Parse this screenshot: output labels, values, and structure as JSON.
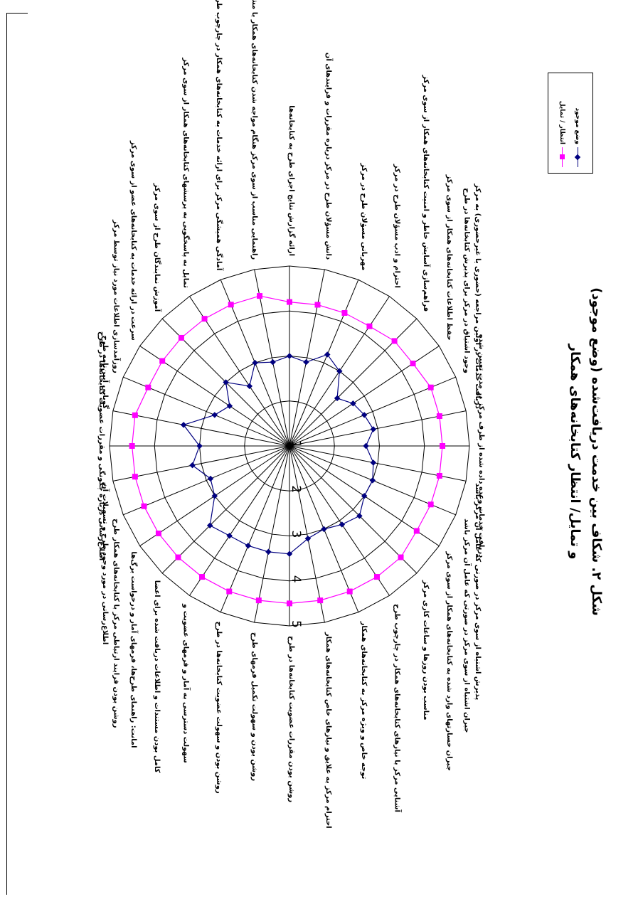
{
  "caption": {
    "line1": "شکل ۲. شکاف بین خدمت دریافت‌شده (وضع موجود)",
    "line2": "و تمایل/ انتظار کتابخانه‌های همکار"
  },
  "legend": {
    "items": [
      {
        "label": "وضع موجود",
        "color": "#000080",
        "marker": "diamond"
      },
      {
        "label": "انتظار / تمایل",
        "color": "#ff00ff",
        "marker": "square"
      }
    ]
  },
  "chart_data": {
    "type": "radar",
    "rlim": [
      1,
      5
    ],
    "tick_labels": [
      "1",
      "2",
      "3",
      "4",
      "5"
    ],
    "categories": [
      "روشن بودن مقررات عضویت کتابخانه‌ها در طرح",
      "روشن بودن و سهولت تکمیل فرمهای طرح",
      "روشن بودن و سهولت عضویت کتابخانه‌ها در طرح",
      "سهولت دسترسی به آمار و فرمهای عضویت و",
      "کامل بودن مستندات و اطلاعات دریافت شده برای اعضا",
      "امانت: راهنمای طرح‌ها، فرمهای آمار و درخواست برگ‌ها",
      "روشن بودن فرایند ارتباطی مرکز با کتابخانه‌های همکار طرح",
      "اطلاع‌رسانی در مورد وجود طرح و تسهیلات آن",
      "اطلاع‌رسانی درباره چگونگی و مقررات عضویت کتابخانه‌ها در طرح",
      "گویایی آیین‌نامه طرح",
      "روزآمدسازی اطلاعات مورد نیاز توسط مرکز",
      "سرعت در ارائه خدمات به کتابخانه‌های عضو از سوی مرکز",
      "آموزش نمایندگان طرح از سوی مرکز",
      "تمایل به پاسخگویی به پرسشهای کتابخانه‌های همکار از سوی مرکز",
      "آمادگی همیشگی مرکز برای ارائه خدمات به کتابخانه‌های همکار در چارچوب طرح",
      "راهنمایی مناسب از سوی مرکز هنگام مواجه شدن کتابخانه‌های همکار با مشکل",
      "ارائه گزارش نتایج اجرای طرح به کتابخانه‌ها",
      "دانش مسؤلان طرح در مرکز درباره مقررات و فرایندهای آن",
      "مهربانی مسؤلان طرح در مرکز",
      "احترام و ادب مسؤلان طرح در مرکز",
      "فراهم‌سازی آسایش خاطر و امنیت کتابخانه‌های همکار از سوی مرکز",
      "حفظ اطلاعات کتابخانه‌های همکار از سوی مرکز",
      "وجود اشتیاق در مرکز برای پذیرش کتابخانه‌ها در طرح",
      "دریافت خدمات در اولین مراجعه (حضوری یا غیرحضوری) به مرکز",
      "دریافت خدمات وعده داده شده از طرف مرکز در مدت تعیین شده",
      "پذیرش اشتباه از سوی مرکز در صورتی که عامل آن مرکز باشد",
      "جبران اشتباه از سوی مرکز در صورتی که عامل آن مرکز باشد",
      "جبران خسارتهای وارد شده به کتابخانه‌های همکار از سوی مرکز",
      "مناسب بودن روزها و ساعات کاری مرکز",
      "آشنایی مرکز با نیازهای کتابخانه‌های همکار در چارچوب طرح",
      "توجه خاص و ویژه مرکز به کتابخانه‌های همکار",
      "احترام مرکز به علایق و نیازهای خاص کتابخانه‌های همکار"
    ],
    "series": [
      {
        "name": "وضع موجود",
        "color": "#000080",
        "values": [
          3.4,
          3.4,
          3.4,
          3.4,
          3.5,
          3.0,
          2.9,
          3.2,
          3.0,
          3.4,
          2.8,
          2.6,
          3.0,
          2.6,
          3.0,
          2.9,
          3.0,
          2.9,
          3.2,
          3.0,
          2.5,
          2.7,
          2.8,
          2.9,
          2.7,
          2.9,
          3.0,
          3.0,
          3.2,
          3.1,
          3.0,
          3.1
        ]
      },
      {
        "name": "انتظار / تمایل",
        "color": "#ff00ff",
        "values": [
          4.5,
          4.5,
          4.5,
          4.5,
          4.5,
          4.5,
          4.5,
          4.5,
          4.5,
          4.5,
          4.4,
          4.4,
          4.4,
          4.4,
          4.4,
          4.4,
          4.2,
          4.2,
          4.2,
          4.2,
          4.3,
          4.3,
          4.4,
          4.4,
          4.4,
          4.4,
          4.4,
          4.4,
          4.5,
          4.5,
          4.5,
          4.5
        ]
      }
    ]
  }
}
